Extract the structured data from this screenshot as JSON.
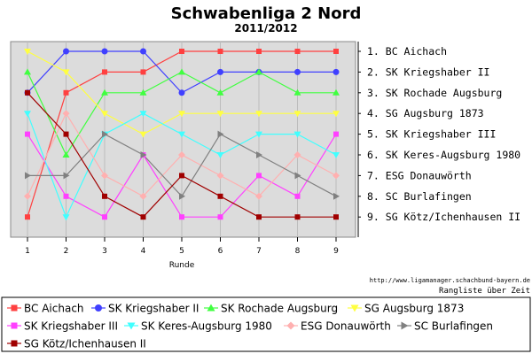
{
  "chart_data": {
    "type": "line",
    "title": "Schwabenliga 2 Nord",
    "subtitle": "2011/2012",
    "xlabel": "Runde",
    "ylabel": "",
    "x": [
      1,
      2,
      3,
      4,
      5,
      6,
      7,
      8,
      9
    ],
    "ylim": [
      1,
      9
    ],
    "y_inverted": true,
    "grid": true,
    "legend_position": "bottom",
    "right_labels": [
      "1.  BC Aichach",
      "2.  SK Kriegshaber II",
      "3.  SK Rochade Augsburg",
      "4.  SG Augsburg 1873",
      "5.  SK Kriegshaber III",
      "6.  SK Keres-Augsburg 1980",
      "7.  ESG Donauwörth",
      "8.  SC Burlafingen",
      "9.  SG Kötz/Ichenhausen II"
    ],
    "series": [
      {
        "name": "BC Aichach",
        "color": "#ff4040",
        "marker": "square",
        "values": [
          9,
          3,
          2,
          2,
          1,
          1,
          1,
          1,
          1
        ]
      },
      {
        "name": "SK Kriegshaber II",
        "color": "#4040ff",
        "marker": "circle",
        "values": [
          3,
          1,
          1,
          1,
          3,
          2,
          2,
          2,
          2
        ]
      },
      {
        "name": "SK Rochade Augsburg",
        "color": "#40ff40",
        "marker": "triangle-up",
        "values": [
          2,
          6,
          3,
          3,
          2,
          3,
          2,
          3,
          3
        ]
      },
      {
        "name": "SG Augsburg 1873",
        "color": "#ffff40",
        "marker": "triangle-down",
        "values": [
          1,
          2,
          4,
          5,
          4,
          4,
          4,
          4,
          4
        ]
      },
      {
        "name": "SK Kriegshaber III",
        "color": "#ff40ff",
        "marker": "square",
        "values": [
          5,
          8,
          9,
          6,
          9,
          9,
          7,
          8,
          5
        ]
      },
      {
        "name": "SK Keres-Augsburg 1980",
        "color": "#40ffff",
        "marker": "triangle-down",
        "values": [
          4,
          9,
          5,
          4,
          5,
          6,
          5,
          5,
          6
        ]
      },
      {
        "name": "ESG Donauwörth",
        "color": "#ffb0b0",
        "marker": "diamond",
        "values": [
          8,
          4,
          7,
          8,
          6,
          7,
          8,
          6,
          7
        ]
      },
      {
        "name": "SC Burlafingen",
        "color": "#808080",
        "marker": "triangle-right",
        "values": [
          7,
          7,
          5,
          6,
          8,
          5,
          6,
          7,
          8
        ]
      },
      {
        "name": "SG Kötz/Ichenhausen II",
        "color": "#a00000",
        "marker": "square",
        "values": [
          3,
          5,
          8,
          9,
          7,
          8,
          9,
          9,
          9
        ]
      }
    ]
  },
  "credit": {
    "url": "http://www.ligamanager.schachbund-bayern.de",
    "caption": "Rangliste über Zeit"
  }
}
